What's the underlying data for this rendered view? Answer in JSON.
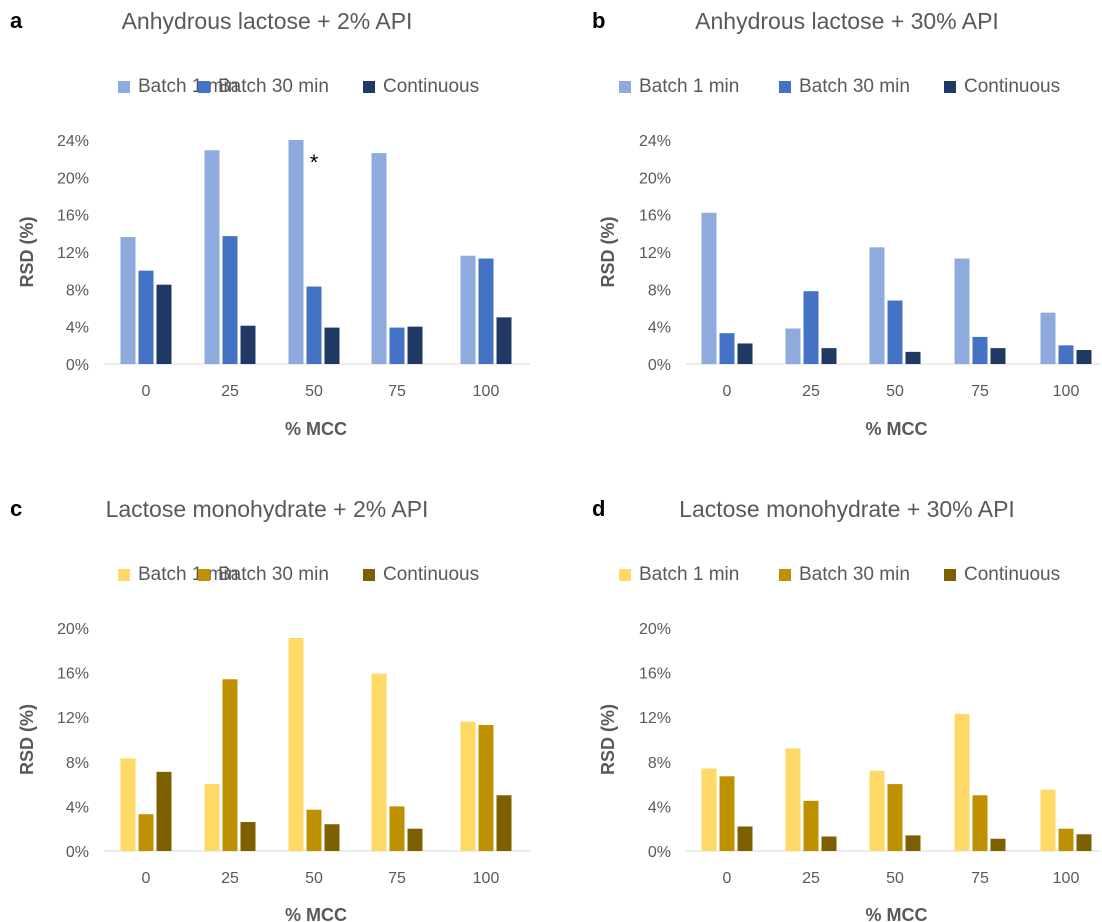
{
  "chart_data": [
    {
      "panel": "a",
      "type": "bar",
      "title": "Anhydrous lactose + 2% API",
      "xlabel": "% MCC",
      "ylabel": "RSD (%)",
      "categories": [
        "0",
        "25",
        "50",
        "75",
        "100"
      ],
      "yticks": [
        "0%",
        "4%",
        "8%",
        "12%",
        "16%",
        "20%",
        "24%"
      ],
      "ylim": [
        0,
        24
      ],
      "series": [
        {
          "name": "Batch 1 min",
          "color": "#8FAADC",
          "values": [
            13.6,
            22.9,
            24.0,
            22.6,
            11.6
          ]
        },
        {
          "name": "Batch 30 min",
          "color": "#4472C4",
          "values": [
            10.0,
            13.7,
            8.3,
            3.9,
            11.3
          ]
        },
        {
          "name": "Continuous",
          "color": "#203864",
          "values": [
            8.5,
            4.1,
            3.9,
            4.0,
            5.0
          ]
        }
      ],
      "annotation": {
        "text": "*",
        "category": "50"
      },
      "legend": "top",
      "grid": false
    },
    {
      "panel": "b",
      "type": "bar",
      "title": "Anhydrous lactose + 30% API",
      "xlabel": "% MCC",
      "ylabel": "RSD (%)",
      "categories": [
        "0",
        "25",
        "50",
        "75",
        "100"
      ],
      "yticks": [
        "0%",
        "4%",
        "8%",
        "12%",
        "16%",
        "20%",
        "24%"
      ],
      "ylim": [
        0,
        24
      ],
      "series": [
        {
          "name": "Batch 1 min",
          "color": "#8FAADC",
          "values": [
            16.2,
            3.8,
            12.5,
            11.3,
            5.5
          ]
        },
        {
          "name": "Batch 30 min",
          "color": "#4472C4",
          "values": [
            3.3,
            7.8,
            6.8,
            2.9,
            2.0
          ]
        },
        {
          "name": "Continuous",
          "color": "#203864",
          "values": [
            2.2,
            1.7,
            1.3,
            1.7,
            1.5
          ]
        }
      ],
      "legend": "top",
      "grid": false
    },
    {
      "panel": "c",
      "type": "bar",
      "title": "Lactose monohydrate + 2% API",
      "xlabel": "% MCC",
      "ylabel": "RSD (%)",
      "categories": [
        "0",
        "25",
        "50",
        "75",
        "100"
      ],
      "yticks": [
        "0%",
        "4%",
        "8%",
        "12%",
        "16%",
        "20%"
      ],
      "ylim": [
        0,
        20
      ],
      "series": [
        {
          "name": "Batch 1 min",
          "color": "#FFD966",
          "values": [
            8.3,
            6.0,
            19.1,
            15.9,
            11.6
          ]
        },
        {
          "name": "Batch 30 min",
          "color": "#BF9000",
          "values": [
            3.3,
            15.4,
            3.7,
            4.0,
            11.3
          ]
        },
        {
          "name": "Continuous",
          "color": "#7F6000",
          "values": [
            7.1,
            2.6,
            2.4,
            2.0,
            5.0
          ]
        }
      ],
      "legend": "top",
      "grid": false
    },
    {
      "panel": "d",
      "type": "bar",
      "title": "Lactose monohydrate + 30% API",
      "xlabel": "% MCC",
      "ylabel": "RSD (%)",
      "categories": [
        "0",
        "25",
        "50",
        "75",
        "100"
      ],
      "yticks": [
        "0%",
        "4%",
        "8%",
        "12%",
        "16%",
        "20%"
      ],
      "ylim": [
        0,
        20
      ],
      "series": [
        {
          "name": "Batch 1 min",
          "color": "#FFD966",
          "values": [
            7.4,
            9.2,
            7.2,
            12.3,
            5.5
          ]
        },
        {
          "name": "Batch 30 min",
          "color": "#BF9000",
          "values": [
            6.7,
            4.5,
            6.0,
            5.0,
            2.0
          ]
        },
        {
          "name": "Continuous",
          "color": "#7F6000",
          "values": [
            2.2,
            1.3,
            1.4,
            1.1,
            1.5
          ]
        }
      ],
      "legend": "top",
      "grid": false
    }
  ]
}
